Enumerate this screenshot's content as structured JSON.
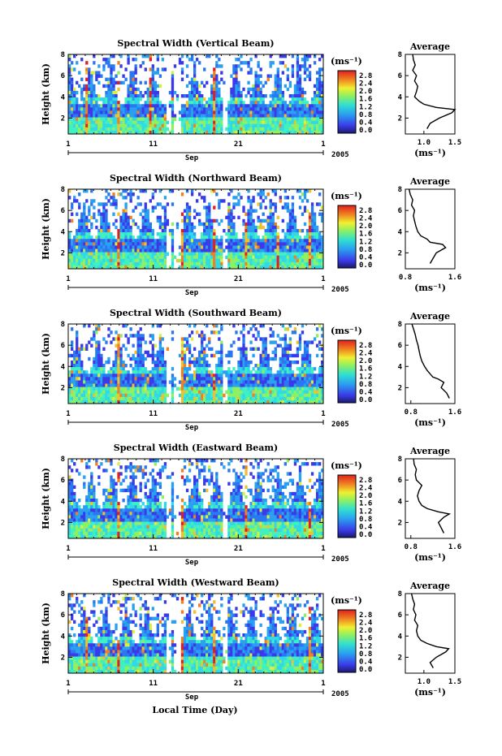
{
  "figure": {
    "xaxis_title": "Local Time (Day)",
    "month_label": "Sep",
    "year_label": "2005",
    "avg_title": "Average",
    "unit_label": "(ms⁻¹)",
    "height_label": "Height (km)"
  },
  "chart_data": [
    {
      "type": "heatmap",
      "title": "Spectral Width (Vertical Beam)",
      "ylabel": "Height (km)",
      "xticks": [
        "1",
        "11",
        "21",
        "1"
      ],
      "yticks": [
        "2",
        "4",
        "6",
        "8"
      ],
      "ylim": [
        0.5,
        8
      ],
      "colorbar": {
        "label": "(ms⁻¹)",
        "ticks": [
          "2.8",
          "2.4",
          "2.0",
          "1.6",
          "1.2",
          "0.8",
          "0.4",
          "0.0"
        ]
      },
      "average_profile": {
        "title": "Average",
        "xlabel": "(ms⁻¹)",
        "xticks": [
          "1.0",
          "1.5"
        ],
        "xlim": [
          0.7,
          1.5
        ],
        "height": [
          1.0,
          1.5,
          2.0,
          2.5,
          2.8,
          3.0,
          3.3,
          3.6,
          4.0,
          4.5,
          5.0,
          5.5,
          6.0,
          6.5,
          7.0,
          7.5,
          8.0
        ],
        "values": [
          1.05,
          1.1,
          1.25,
          1.45,
          1.5,
          1.2,
          1.0,
          0.92,
          0.85,
          0.88,
          0.9,
          0.85,
          0.88,
          0.82,
          0.86,
          0.83,
          0.82
        ]
      }
    },
    {
      "type": "heatmap",
      "title": "Spectral Width (Northward Beam)",
      "ylabel": "Height (km)",
      "xticks": [
        "1",
        "11",
        "21",
        "1"
      ],
      "yticks": [
        "2",
        "4",
        "6",
        "8"
      ],
      "ylim": [
        0.5,
        8
      ],
      "colorbar": {
        "label": "(ms⁻¹)",
        "ticks": [
          "2.8",
          "2.4",
          "2.0",
          "1.6",
          "1.2",
          "0.8",
          "0.4",
          "0.0"
        ]
      },
      "average_profile": {
        "title": "Average",
        "xlabel": "(ms⁻¹)",
        "xticks": [
          "0.8",
          "1.6"
        ],
        "xlim": [
          0.8,
          1.6
        ],
        "height": [
          1.0,
          1.5,
          2.0,
          2.5,
          2.8,
          3.0,
          3.3,
          3.6,
          4.0,
          4.5,
          5.0,
          5.5,
          6.0,
          6.5,
          7.0,
          7.5,
          8.0
        ],
        "values": [
          1.2,
          1.25,
          1.3,
          1.45,
          1.4,
          1.2,
          1.15,
          1.05,
          1.0,
          0.97,
          0.95,
          0.93,
          0.95,
          0.9,
          0.92,
          0.88,
          0.86
        ]
      }
    },
    {
      "type": "heatmap",
      "title": "Spectral Width (Southward Beam)",
      "ylabel": "Height (km)",
      "xticks": [
        "1",
        "11",
        "21",
        "1"
      ],
      "yticks": [
        "2",
        "4",
        "6",
        "8"
      ],
      "ylim": [
        0.5,
        8
      ],
      "colorbar": {
        "label": "(ms⁻¹)",
        "ticks": [
          "2.8",
          "2.4",
          "2.0",
          "1.6",
          "1.2",
          "0.8",
          "0.4",
          "0.0"
        ]
      },
      "average_profile": {
        "title": "Average",
        "xlabel": "(ms⁻¹)",
        "xticks": [
          "0.8",
          "1.6"
        ],
        "xlim": [
          0.7,
          1.6
        ],
        "height": [
          1.0,
          1.5,
          2.0,
          2.5,
          2.8,
          3.0,
          3.3,
          3.6,
          4.0,
          4.5,
          5.0,
          5.5,
          6.0,
          6.5,
          7.0,
          7.5,
          8.0
        ],
        "values": [
          1.5,
          1.45,
          1.35,
          1.4,
          1.3,
          1.2,
          1.15,
          1.1,
          1.05,
          1.0,
          0.97,
          0.95,
          0.93,
          0.9,
          0.88,
          0.85,
          0.82
        ]
      }
    },
    {
      "type": "heatmap",
      "title": "Spectral Width (Eastward Beam)",
      "ylabel": "Height (km)",
      "xticks": [
        "1",
        "11",
        "21",
        "1"
      ],
      "yticks": [
        "2",
        "4",
        "6",
        "8"
      ],
      "ylim": [
        0.5,
        8
      ],
      "colorbar": {
        "label": "(ms⁻¹)",
        "ticks": [
          "2.8",
          "2.4",
          "2.0",
          "1.6",
          "1.2",
          "0.8",
          "0.4",
          "0.0"
        ]
      },
      "average_profile": {
        "title": "Average",
        "xlabel": "(ms⁻¹)",
        "xticks": [
          "0.8",
          "1.6"
        ],
        "xlim": [
          0.7,
          1.6
        ],
        "height": [
          1.0,
          1.5,
          2.0,
          2.5,
          2.8,
          3.0,
          3.3,
          3.6,
          4.0,
          4.5,
          5.0,
          5.5,
          6.0,
          6.5,
          7.0,
          7.5,
          8.0
        ],
        "values": [
          1.4,
          1.35,
          1.3,
          1.4,
          1.5,
          1.3,
          1.1,
          1.0,
          0.95,
          0.92,
          0.95,
          1.0,
          0.9,
          0.88,
          0.9,
          0.86,
          0.85
        ]
      }
    },
    {
      "type": "heatmap",
      "title": "Spectral Width (Westward Beam)",
      "ylabel": "Height (km)",
      "xticks": [
        "1",
        "11",
        "21",
        "1"
      ],
      "yticks": [
        "2",
        "4",
        "6",
        "8"
      ],
      "ylim": [
        0.5,
        8
      ],
      "colorbar": {
        "label": "(ms⁻¹)",
        "ticks": [
          "2.8",
          "2.4",
          "2.0",
          "1.6",
          "1.2",
          "0.8",
          "0.4",
          "0.0"
        ]
      },
      "average_profile": {
        "title": "Average",
        "xlabel": "(ms⁻¹)",
        "xticks": [
          "1.0",
          "1.5"
        ],
        "xlim": [
          0.7,
          1.5
        ],
        "height": [
          1.0,
          1.5,
          2.0,
          2.5,
          2.8,
          3.0,
          3.3,
          3.6,
          4.0,
          4.5,
          5.0,
          5.5,
          6.0,
          6.5,
          7.0,
          7.5,
          8.0
        ],
        "values": [
          1.15,
          1.1,
          1.2,
          1.35,
          1.4,
          1.2,
          1.05,
          0.95,
          0.9,
          0.88,
          0.9,
          0.85,
          0.87,
          0.83,
          0.85,
          0.82,
          0.8
        ]
      }
    }
  ]
}
